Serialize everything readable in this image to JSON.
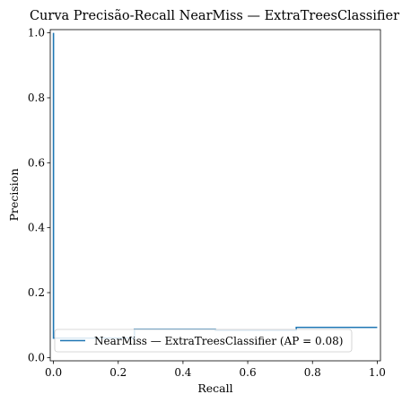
{
  "chart_data": {
    "type": "line",
    "title": "Curva Precisão-Recall NearMiss — ExtraTreesClassifier",
    "xlabel": "Recall",
    "ylabel": "Precision",
    "xlim": [
      -0.01,
      1.01
    ],
    "ylim": [
      -0.01,
      1.01
    ],
    "xticks": [
      "0.0",
      "0.2",
      "0.4",
      "0.6",
      "0.8",
      "1.0"
    ],
    "yticks": [
      "0.0",
      "0.2",
      "0.4",
      "0.6",
      "0.8",
      "1.0"
    ],
    "grid": false,
    "legend_position": "lower-left",
    "series": [
      {
        "name": "NearMiss — ExtraTreesClassifier (AP = 0.08)",
        "color": "#1f77b4",
        "drawstyle": "steps-post",
        "recall": [
          0.0,
          0.0,
          0.25,
          0.25,
          0.5,
          0.5,
          0.75,
          0.75,
          1.0
        ],
        "precision": [
          1.0,
          0.06,
          0.06,
          0.087,
          0.087,
          0.084,
          0.084,
          0.093,
          0.093
        ]
      }
    ]
  }
}
